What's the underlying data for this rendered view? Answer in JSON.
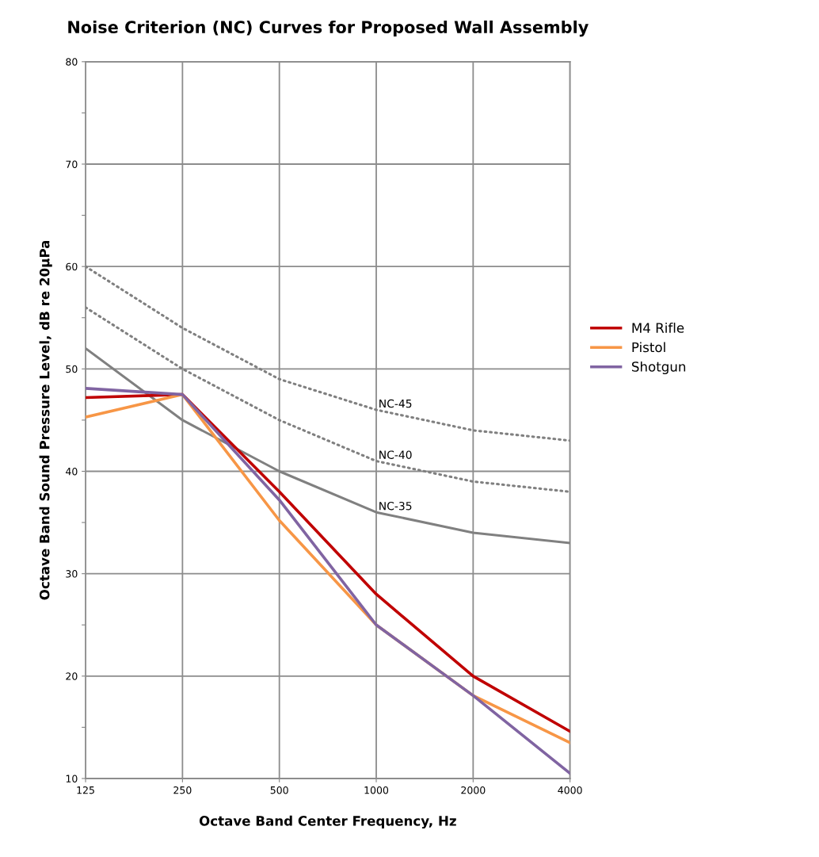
{
  "chart_data": {
    "type": "line",
    "title": "Noise Criterion (NC) Curves for Proposed Wall Assembly",
    "xlabel": "Octave Band Center Frequency, Hz",
    "ylabel": "Octave Band Sound Pressure Level, dB re 20μPa",
    "categories": [
      "125",
      "250",
      "500",
      "1000",
      "2000",
      "4000"
    ],
    "series": [
      {
        "color": "#808080",
        "values": [
          60,
          54,
          49,
          46,
          44,
          43
        ],
        "line_style": "dotted"
      },
      {
        "color": "#808080",
        "values": [
          56,
          50,
          45,
          41,
          39,
          38
        ],
        "line_style": "dotted"
      },
      {
        "color": "#808080",
        "values": [
          52,
          45,
          40,
          36,
          34,
          33
        ],
        "line_style": "solid"
      },
      {
        "name": "M4 Rifle",
        "color": "#c00000",
        "values": [
          47.2,
          47.5,
          38,
          28,
          20,
          14.6
        ],
        "line_style": "solid"
      },
      {
        "name": "Pistol",
        "color": "#f79646",
        "values": [
          45.3,
          47.5,
          35.2,
          25,
          18.1,
          13.5
        ],
        "line_style": "solid"
      },
      {
        "name": "Shotgun",
        "color": "#8064a2",
        "values": [
          48.1,
          47.5,
          37.2,
          25,
          18.1,
          10.5
        ],
        "line_style": "solid"
      }
    ],
    "annotations": [
      {
        "text": "NC-45",
        "x": "1000",
        "y": 46
      },
      {
        "text": "NC-40",
        "x": "1000",
        "y": 41
      },
      {
        "text": "NC-35",
        "x": "1000",
        "y": 36
      }
    ],
    "ylim": [
      10,
      80
    ],
    "yticks": [
      10,
      {
        "value": 15,
        "label": null
      },
      20,
      {
        "value": 25,
        "label": null
      },
      30,
      {
        "value": 35,
        "label": null
      },
      40,
      {
        "value": 45,
        "label": null
      },
      50,
      {
        "value": 55,
        "label": null
      },
      60,
      {
        "value": 65,
        "label": null
      },
      70,
      {
        "value": 75,
        "label": null
      },
      80
    ],
    "grid": true,
    "legend": "right",
    "marker": "none"
  }
}
